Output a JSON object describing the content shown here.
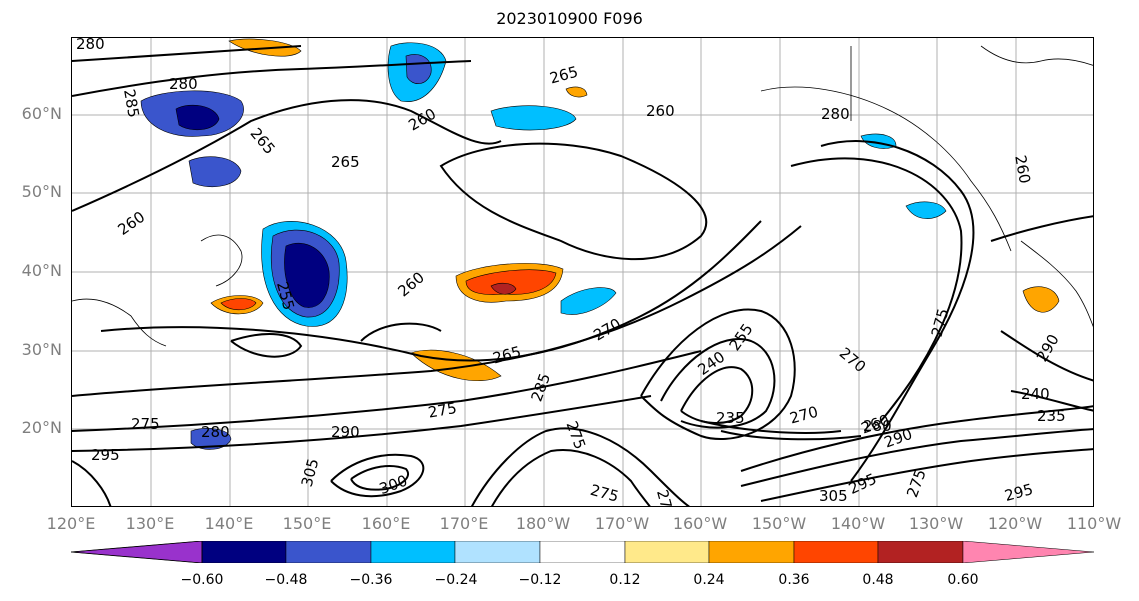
{
  "title": "2023010900 F096",
  "lat_labels": [
    "60°N",
    "50°N",
    "40°N",
    "30°N",
    "20°N"
  ],
  "lon_labels": [
    "120°E",
    "130°E",
    "140°E",
    "150°E",
    "160°E",
    "170°E",
    "180°W",
    "170°W",
    "160°W",
    "150°W",
    "140°W",
    "130°W",
    "120°W",
    "110°W"
  ],
  "contour_labels": [
    "280",
    "285",
    "280",
    "265",
    "265",
    "260",
    "265",
    "260",
    "280",
    "260",
    "260",
    "255",
    "260",
    "270",
    "265",
    "275",
    "275",
    "280",
    "290",
    "295",
    "305",
    "300",
    "285",
    "275",
    "275",
    "270",
    "275",
    "240",
    "235",
    "270",
    "260",
    "255",
    "305",
    "295",
    "275",
    "290",
    "280",
    "240",
    "235",
    "295",
    "275",
    "290"
  ],
  "colorbar": {
    "ticks": [
      "−0.60",
      "−0.48",
      "−0.36",
      "−0.24",
      "−0.12",
      "0.12",
      "0.24",
      "0.36",
      "0.48",
      "0.60"
    ],
    "colors": [
      "#9932cc",
      "#000080",
      "#3a55cc",
      "#00bfff",
      "#b0e2ff",
      "#ffffff",
      "#ffe98a",
      "#ffa500",
      "#ff4500",
      "#b22222",
      "#ff85b0"
    ]
  }
}
